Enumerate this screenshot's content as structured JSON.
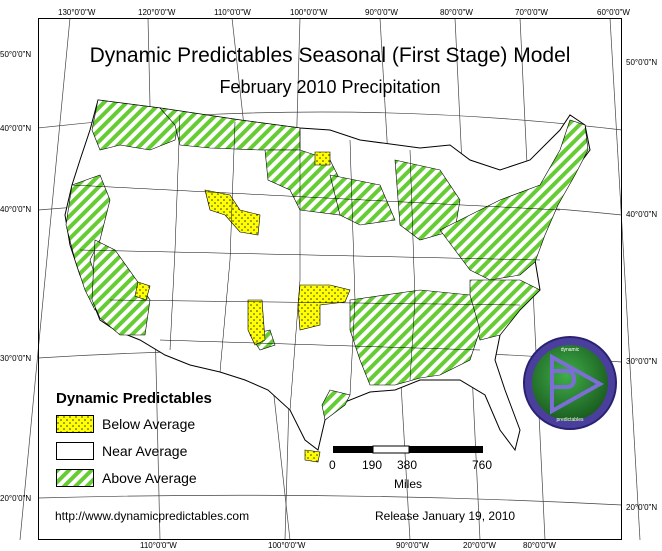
{
  "title": "Dynamic Predictables Seasonal (First Stage) Model",
  "subtitle": "February 2010 Precipitation",
  "graticule": {
    "top": [
      "130°0'0\"W",
      "120°0'0\"W",
      "110°0'0\"W",
      "100°0'0\"W",
      "90°0'0\"W",
      "80°0'0\"W",
      "70°0'0\"W",
      "60°0'0\"W"
    ],
    "bottom": [
      "110°0'0\"W",
      "100°0'0\"W",
      "90°0'0\"W",
      "20°0'0\"W",
      "80°0'0\"W"
    ],
    "left": [
      "50°0'0\"N",
      "40°0'0\"N",
      "40°0'0\"N",
      "30°0'0\"N",
      "20°0'0\"N"
    ],
    "right": [
      "50°0'0\"N",
      "40°0'0\"N",
      "30°0'0\"N",
      "20°0'0\"N"
    ]
  },
  "legend": {
    "title": "Dynamic Predictables",
    "items": [
      {
        "label": "Below Average",
        "color": "#ffff00",
        "pattern": "dots"
      },
      {
        "label": "Near Average",
        "color": "#ffffff",
        "pattern": "none"
      },
      {
        "label": "Above Average",
        "color": "#66cc33",
        "pattern": "diagonal-hatch"
      }
    ]
  },
  "scale": {
    "ticks": [
      "0",
      "190",
      "380",
      "760"
    ],
    "unit": "Miles"
  },
  "footer": {
    "url": "http://www.dynamicpredictables.com",
    "release": "Release January 19, 2010"
  },
  "logo": {
    "name": "dynamic-predictables-logo",
    "text_top": "dynamic",
    "text_bottom": "predictables",
    "ring_color": "#4b3f9e",
    "inner_color": "#2e7d32"
  }
}
